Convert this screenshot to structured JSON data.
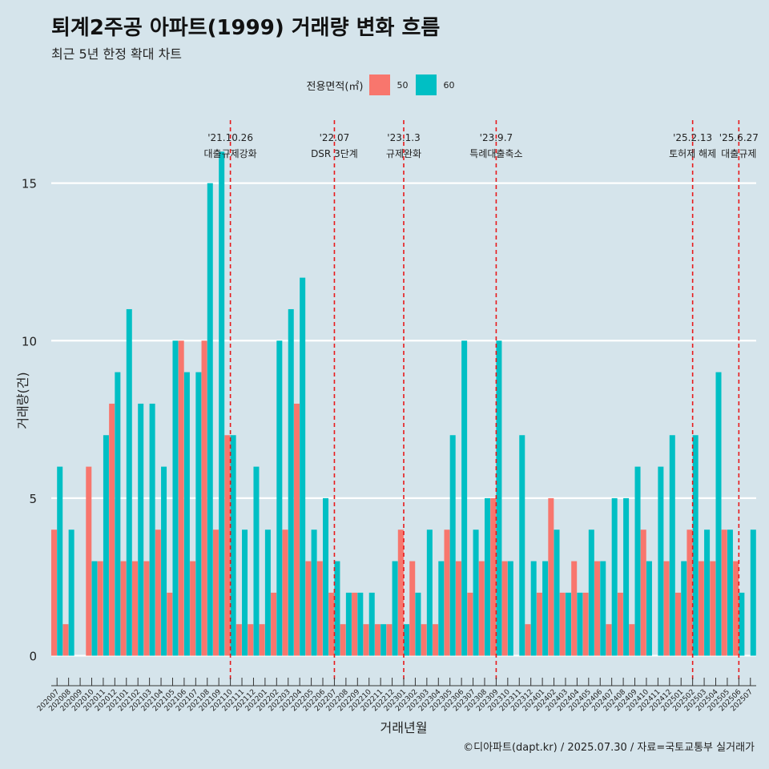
{
  "title": "퇴계2주공 아파트(1999) 거래량 변화 흐름",
  "subtitle": "최근 5년 한정 확대 차트",
  "caption": "©디아파트(dapt.kr) / 2025.07.30 / 자료=국토교통부 실거래가",
  "legend": {
    "title": "전용면적(㎡)",
    "items": [
      {
        "label": "50",
        "color": "#f8766d"
      },
      {
        "label": "60",
        "color": "#00bfc4"
      }
    ]
  },
  "chart_data": {
    "type": "bar",
    "title": "퇴계2주공 아파트(1999) 거래량 변화 흐름",
    "xlabel": "거래년월",
    "ylabel": "거래량(건)",
    "ylim": [
      -0.8,
      17
    ],
    "yticks": [
      0,
      5,
      10,
      15
    ],
    "categories": [
      "202007",
      "202008",
      "202009",
      "202010",
      "202011",
      "202012",
      "202101",
      "202102",
      "202103",
      "202104",
      "202105",
      "202106",
      "202107",
      "202108",
      "202109",
      "202110",
      "202111",
      "202112",
      "202201",
      "202202",
      "202203",
      "202204",
      "202205",
      "202206",
      "202207",
      "202208",
      "202209",
      "202210",
      "202211",
      "202212",
      "202301",
      "202302",
      "202303",
      "202304",
      "202305",
      "202306",
      "202307",
      "202308",
      "202309",
      "202310",
      "202311",
      "202312",
      "202401",
      "202402",
      "202403",
      "202404",
      "202405",
      "202406",
      "202407",
      "202408",
      "202409",
      "202410",
      "202411",
      "202412",
      "202501",
      "202502",
      "202503",
      "202504",
      "202505",
      "202506",
      "202507"
    ],
    "series": [
      {
        "name": "50",
        "color": "#f8766d",
        "values": [
          4,
          1,
          0,
          6,
          3,
          8,
          3,
          3,
          3,
          4,
          2,
          10,
          3,
          10,
          4,
          7,
          1,
          1,
          1,
          2,
          4,
          8,
          3,
          3,
          2,
          1,
          2,
          1,
          1,
          1,
          4,
          3,
          1,
          1,
          4,
          3,
          2,
          3,
          5,
          3,
          0,
          1,
          2,
          5,
          2,
          3,
          2,
          3,
          1,
          2,
          1,
          4,
          0,
          3,
          2,
          4,
          3,
          3,
          4,
          3,
          0
        ]
      },
      {
        "name": "60",
        "color": "#00bfc4",
        "values": [
          6,
          4,
          0,
          3,
          7,
          9,
          11,
          8,
          8,
          6,
          10,
          9,
          9,
          15,
          16,
          7,
          4,
          6,
          4,
          10,
          11,
          12,
          4,
          5,
          3,
          2,
          2,
          2,
          1,
          3,
          1,
          2,
          4,
          3,
          7,
          10,
          4,
          5,
          10,
          3,
          7,
          3,
          3,
          4,
          2,
          2,
          4,
          3,
          5,
          5,
          6,
          3,
          6,
          7,
          3,
          7,
          4,
          9,
          4,
          2,
          4
        ]
      }
    ],
    "events": [
      {
        "category": "202110",
        "date": "'21.10.26",
        "label": "대출규제강화"
      },
      {
        "category": "202207",
        "date": "'22.07",
        "label": "DSR 3단계"
      },
      {
        "category": "202301",
        "date": "'23.1.3",
        "label": "규제완화"
      },
      {
        "category": "202309",
        "date": "'23.9.7",
        "label": "특례대출축소"
      },
      {
        "category": "202502",
        "date": "'25.2.13",
        "label": "토허제 해제"
      },
      {
        "category": "202506",
        "date": "'25.6.27",
        "label": "대출규제"
      }
    ]
  }
}
